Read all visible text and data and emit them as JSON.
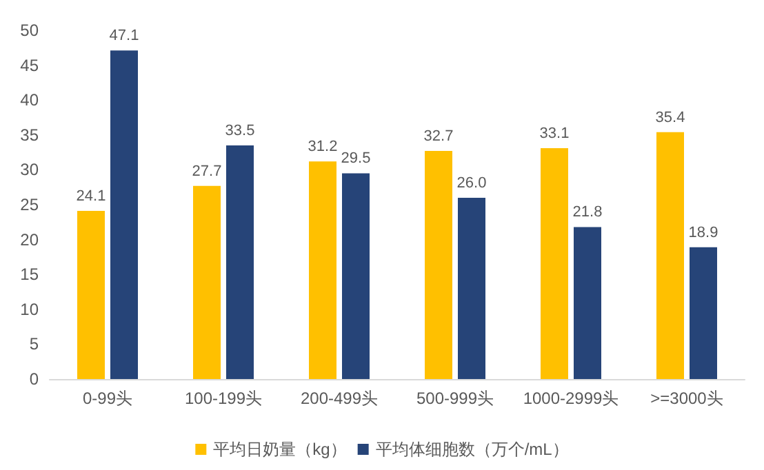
{
  "chart_data": {
    "type": "bar",
    "categories": [
      "0-99头",
      "100-199头",
      "200-499头",
      "500-999头",
      "1000-2999头",
      ">=3000头"
    ],
    "series": [
      {
        "name": "平均日奶量（kg）",
        "color": "#ffc000",
        "values": [
          24.1,
          27.7,
          31.2,
          32.7,
          33.1,
          35.4
        ],
        "value_labels": [
          "24.1",
          "27.7",
          "31.2",
          "32.7",
          "33.1",
          "35.4"
        ]
      },
      {
        "name": "平均体细胞数（万个/mL）",
        "color": "#264478",
        "values": [
          47.1,
          33.5,
          29.5,
          26.0,
          21.8,
          18.9
        ],
        "value_labels": [
          "47.1",
          "33.5",
          "29.5",
          "26.0",
          "21.8",
          "18.9"
        ]
      }
    ],
    "ylim": [
      0,
      50
    ],
    "yticks": [
      0,
      5,
      10,
      15,
      20,
      25,
      30,
      35,
      40,
      45,
      50
    ],
    "grid": false,
    "legend": "bottom"
  }
}
